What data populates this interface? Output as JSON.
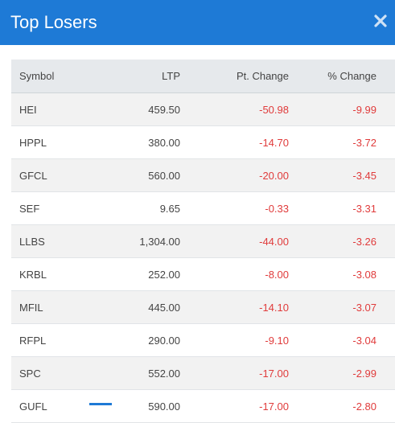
{
  "header": {
    "title": "Top Losers",
    "close_icon": "close-icon"
  },
  "colors": {
    "header_bg": "#1e7ad6",
    "negative": "#e03b3b"
  },
  "table": {
    "columns": [
      "Symbol",
      "LTP",
      "Pt. Change",
      "% Change"
    ],
    "rows": [
      {
        "symbol": "HEI",
        "ltp": "459.50",
        "pt_change": "-50.98",
        "pct_change": "-9.99"
      },
      {
        "symbol": "HPPL",
        "ltp": "380.00",
        "pt_change": "-14.70",
        "pct_change": "-3.72"
      },
      {
        "symbol": "GFCL",
        "ltp": "560.00",
        "pt_change": "-20.00",
        "pct_change": "-3.45"
      },
      {
        "symbol": "SEF",
        "ltp": "9.65",
        "pt_change": "-0.33",
        "pct_change": "-3.31"
      },
      {
        "symbol": "LLBS",
        "ltp": "1,304.00",
        "pt_change": "-44.00",
        "pct_change": "-3.26"
      },
      {
        "symbol": "KRBL",
        "ltp": "252.00",
        "pt_change": "-8.00",
        "pct_change": "-3.08"
      },
      {
        "symbol": "MFIL",
        "ltp": "445.00",
        "pt_change": "-14.10",
        "pct_change": "-3.07"
      },
      {
        "symbol": "RFPL",
        "ltp": "290.00",
        "pt_change": "-9.10",
        "pct_change": "-3.04"
      },
      {
        "symbol": "SPC",
        "ltp": "552.00",
        "pt_change": "-17.00",
        "pct_change": "-2.99"
      },
      {
        "symbol": "GUFL",
        "ltp": "590.00",
        "pt_change": "-17.00",
        "pct_change": "-2.80"
      }
    ]
  }
}
